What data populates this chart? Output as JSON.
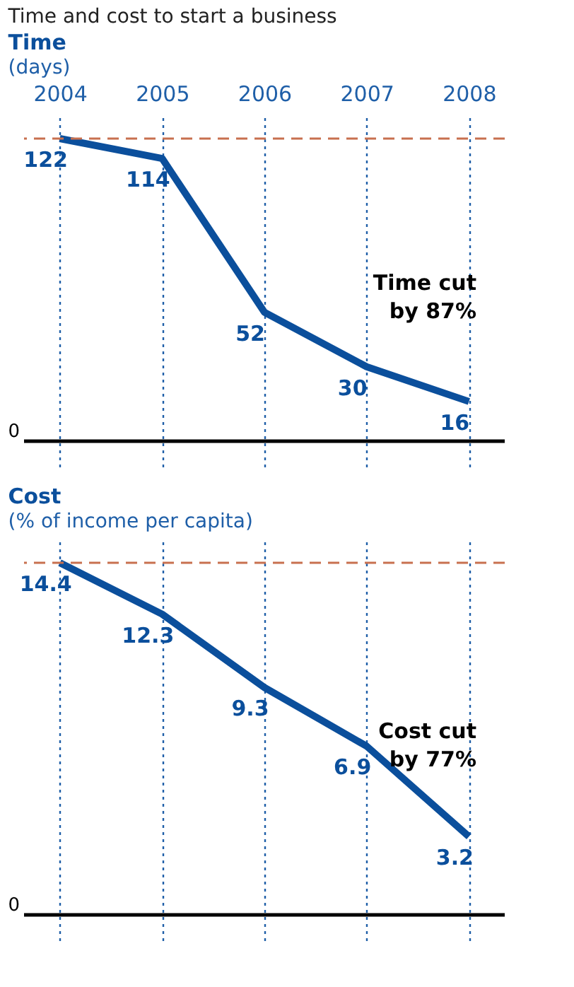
{
  "chart_data": [
    {
      "type": "line",
      "subtitle": "Time and cost to start a business",
      "title": "Time",
      "ylabel": "(days)",
      "categories": [
        "2004",
        "2005",
        "2006",
        "2007",
        "2008"
      ],
      "series": [
        {
          "color": "#0b4f9c",
          "values": [
            122,
            114,
            52,
            30,
            16
          ]
        }
      ],
      "grid": "x",
      "data_labels": true,
      "tick_labels": "x",
      "ref_lines": [
        {
          "axis": "y",
          "value": 122,
          "color": "#c8704f",
          "line_style": "dashed"
        },
        {
          "axis": "y",
          "value": 0,
          "label": "0",
          "color": "#000000",
          "line_style": "solid"
        }
      ],
      "annotations": [
        "Time cut by 87%"
      ]
    },
    {
      "type": "line",
      "title": "Cost",
      "ylabel": "(% of income per capita)",
      "categories": [
        "2004",
        "2005",
        "2006",
        "2007",
        "2008"
      ],
      "series": [
        {
          "color": "#0b4f9c",
          "values": [
            14.4,
            12.3,
            9.3,
            6.9,
            3.2
          ]
        }
      ],
      "grid": "x",
      "data_labels": true,
      "tick_labels": false,
      "ref_lines": [
        {
          "axis": "y",
          "value": 14.4,
          "color": "#c8704f",
          "line_style": "dashed"
        },
        {
          "axis": "y",
          "value": 0,
          "label": "0",
          "color": "#000000",
          "line_style": "solid"
        }
      ],
      "annotations": [
        "Cost cut by 77%"
      ]
    }
  ]
}
